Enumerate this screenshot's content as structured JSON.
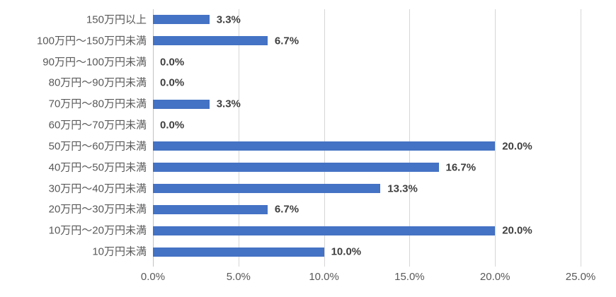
{
  "chart_data": {
    "type": "bar",
    "orientation": "horizontal",
    "title": "",
    "xlabel": "",
    "ylabel": "",
    "categories": [
      "150万円以上",
      "100万円～150万円未満",
      "90万円～100万円未満",
      "80万円～90万円未満",
      "70万円～80万円未満",
      "60万円～70万円未満",
      "50万円～60万円未満",
      "40万円～50万円未満",
      "30万円～40万円未満",
      "20万円～30万円未満",
      "10万円～20万円未満",
      "10万円未満"
    ],
    "values": [
      3.3,
      6.7,
      0.0,
      0.0,
      3.3,
      0.0,
      20.0,
      16.7,
      13.3,
      6.7,
      20.0,
      10.0
    ],
    "value_labels": [
      "3.3%",
      "6.7%",
      "0.0%",
      "0.0%",
      "3.3%",
      "0.0%",
      "20.0%",
      "16.7%",
      "13.3%",
      "6.7%",
      "20.0%",
      "10.0%"
    ],
    "xlim": [
      0,
      25
    ],
    "x_ticks": [
      {
        "value": 0,
        "label": "0.0%"
      },
      {
        "value": 5,
        "label": "5.0%"
      },
      {
        "value": 10,
        "label": "10.0%"
      },
      {
        "value": 15,
        "label": "15.0%"
      },
      {
        "value": 20,
        "label": "20.0%"
      },
      {
        "value": 25,
        "label": "25.0%"
      }
    ],
    "grid": true,
    "legend": false,
    "colors": {
      "bar": "#4472C4",
      "category_label": "#595959",
      "value_label": "#3f3f3f",
      "tick_label": "#595959",
      "gridline": "#d6d6d6",
      "axis_line": "#c3c3c3"
    }
  }
}
